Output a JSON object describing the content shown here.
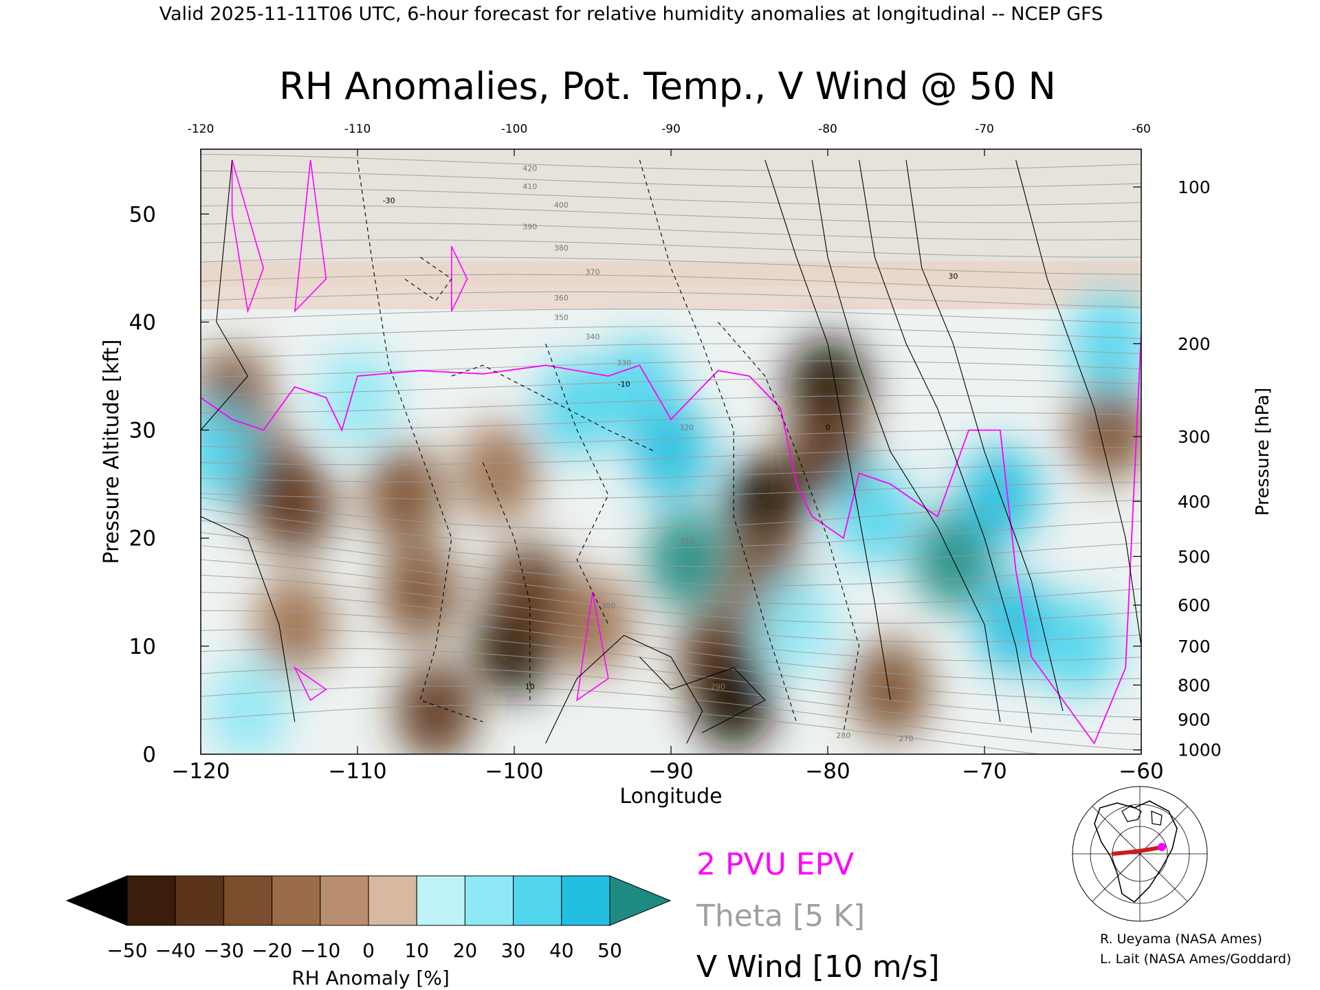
{
  "header": "Valid 2025-11-11T06 UTC, 6-hour forecast for relative humidity anomalies at longitudinal -- NCEP GFS",
  "chart_data": {
    "type": "heatmap",
    "title": "RH Anomalies, Pot. Temp., V Wind @ 50 N",
    "xlabel": "Longitude",
    "ylabel": "Pressure Altitude [kft]",
    "y2label": "Pressure [hPa]",
    "xlim": [
      -120,
      -60
    ],
    "ylim": [
      0,
      56
    ],
    "x_ticks": [
      -120,
      -110,
      -100,
      -90,
      -80,
      -70,
      -60
    ],
    "y_ticks": [
      0,
      10,
      20,
      30,
      40,
      50
    ],
    "top_ticks": [
      "-120",
      "-110",
      "-100",
      "-90",
      "-80",
      "-70",
      "-60"
    ],
    "pressure_ticks": [
      {
        "label": "100",
        "kft": 52.5
      },
      {
        "label": "200",
        "kft": 38.0
      },
      {
        "label": "300",
        "kft": 29.4
      },
      {
        "label": "400",
        "kft": 23.4
      },
      {
        "label": "500",
        "kft": 18.3
      },
      {
        "label": "600",
        "kft": 13.8
      },
      {
        "label": "700",
        "kft": 10.0
      },
      {
        "label": "800",
        "kft": 6.4
      },
      {
        "label": "900",
        "kft": 3.2
      },
      {
        "label": "1000",
        "kft": 0.4
      }
    ],
    "colorbar": {
      "label": "RH Anomaly [%]",
      "ticks": [
        "-50",
        "-40",
        "-30",
        "-20",
        "-10",
        "0",
        "10",
        "20",
        "30",
        "40",
        "50"
      ],
      "colors": [
        "#3a1d0a",
        "#5b3419",
        "#7b4e2d",
        "#9a6c49",
        "#b98e6e",
        "#d8b8a0",
        "#eef3f2",
        "#bff3f8",
        "#8fe8f5",
        "#52d6ee",
        "#22bfe0",
        "#0a9fc2"
      ],
      "under_color": "#000000",
      "over_color": "#1f8a80"
    },
    "legend": [
      {
        "label": "2 PVU EPV",
        "color": "#ff00ff"
      },
      {
        "label": "Theta [5 K]",
        "color": "#a0a0a0"
      },
      {
        "label": "V Wind [10 m/s]",
        "color": "#000000"
      }
    ],
    "rh_anomaly_field": [
      {
        "lon": -118,
        "kft": 33,
        "value": -30
      },
      {
        "lon": -116,
        "kft": 26,
        "value": -30
      },
      {
        "lon": -114,
        "kft": 23,
        "value": -35
      },
      {
        "lon": -114,
        "kft": 12,
        "value": -20
      },
      {
        "lon": -107,
        "kft": 24,
        "value": -30
      },
      {
        "lon": -106,
        "kft": 15,
        "value": -30
      },
      {
        "lon": -105,
        "kft": 4,
        "value": -35
      },
      {
        "lon": -101,
        "kft": 26,
        "value": -20
      },
      {
        "lon": -100,
        "kft": 10,
        "value": -50
      },
      {
        "lon": -99,
        "kft": 15,
        "value": -35
      },
      {
        "lon": -95,
        "kft": 12,
        "value": -15
      },
      {
        "lon": -87,
        "kft": 9,
        "value": -40
      },
      {
        "lon": -86,
        "kft": 5,
        "value": -50
      },
      {
        "lon": -84,
        "kft": 23,
        "value": -50
      },
      {
        "lon": -84,
        "kft": 16,
        "value": -30
      },
      {
        "lon": -80,
        "kft": 34,
        "value": -50
      },
      {
        "lon": -80,
        "kft": 28,
        "value": -40
      },
      {
        "lon": -76,
        "kft": 6,
        "value": -25
      },
      {
        "lon": -62,
        "kft": 30,
        "value": -30
      },
      {
        "lon": -110,
        "kft": 33,
        "value": 20
      },
      {
        "lon": -96,
        "kft": 32,
        "value": 30
      },
      {
        "lon": -92,
        "kft": 34,
        "value": 30
      },
      {
        "lon": -90,
        "kft": 28,
        "value": 40
      },
      {
        "lon": -89,
        "kft": 18,
        "value": 55
      },
      {
        "lon": -82,
        "kft": 12,
        "value": 20
      },
      {
        "lon": -77,
        "kft": 22,
        "value": 35
      },
      {
        "lon": -72,
        "kft": 18,
        "value": 55
      },
      {
        "lon": -69,
        "kft": 24,
        "value": 40
      },
      {
        "lon": -68,
        "kft": 12,
        "value": 40
      },
      {
        "lon": -64,
        "kft": 10,
        "value": 30
      },
      {
        "lon": -62,
        "kft": 38,
        "value": 30
      },
      {
        "lon": -119,
        "kft": 28,
        "value": 30
      },
      {
        "lon": -117,
        "kft": 4,
        "value": 20
      }
    ],
    "theta_contour_labels": [
      "420",
      "410",
      "400",
      "390",
      "380",
      "370",
      "360",
      "350",
      "340",
      "330",
      "320",
      "310",
      "300",
      "290",
      "280",
      "270"
    ],
    "v_wind_contour_labels": [
      "-30",
      "-10",
      "0",
      "10",
      "30"
    ]
  },
  "inset_map": {
    "description_icon": "north-america-polar-map-icon"
  },
  "credits": [
    "R. Ueyama (NASA Ames)",
    "L. Lait (NASA Ames/Goddard)"
  ]
}
